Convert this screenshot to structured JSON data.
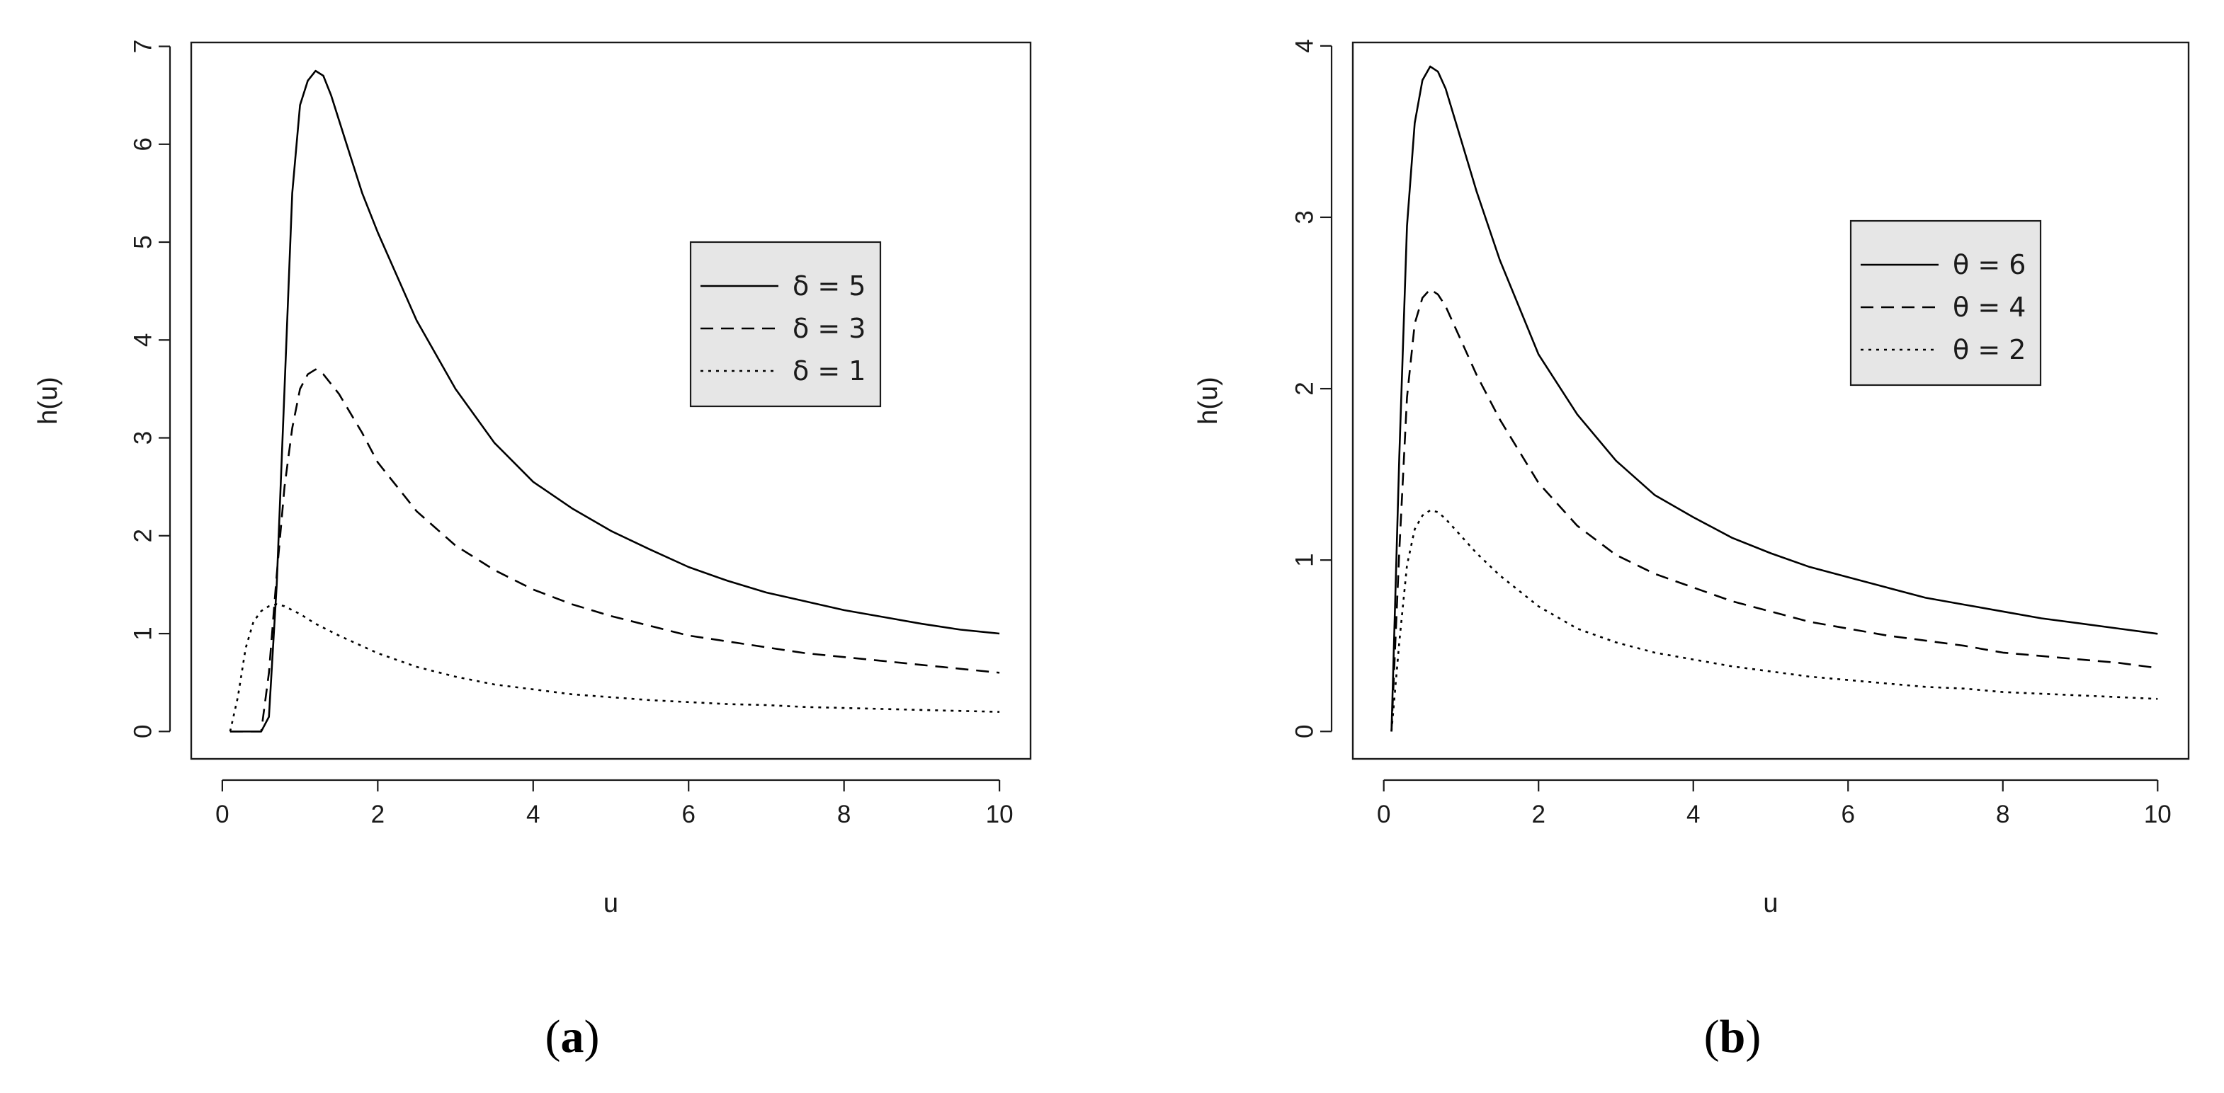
{
  "colors": {
    "line": "#000000",
    "legend_bg": "#e6e6e6",
    "axis": "#1a1a1a"
  },
  "chart_data": [
    {
      "type": "line",
      "panel_label": {
        "open": "(",
        "letter": "a",
        "close": ")"
      },
      "xlabel": "u",
      "ylabel": "h(u)",
      "xlim": [
        -0.4,
        10.4
      ],
      "ylim": [
        -0.28,
        7.04
      ],
      "xticks": [
        "0",
        "2",
        "4",
        "6",
        "8",
        "10"
      ],
      "yticks": [
        "0",
        "1",
        "2",
        "3",
        "4",
        "5",
        "6",
        "7"
      ],
      "legend_position": "right-middle",
      "series": [
        {
          "name": "δ = 5",
          "style": "solid",
          "x": [
            0.1,
            0.3,
            0.5,
            0.6,
            0.7,
            0.8,
            0.9,
            1.0,
            1.1,
            1.2,
            1.3,
            1.4,
            1.6,
            1.8,
            2.0,
            2.5,
            3.0,
            3.5,
            4.0,
            4.5,
            5.0,
            5.5,
            6.0,
            6.5,
            7.0,
            7.5,
            8.0,
            8.5,
            9.0,
            9.5,
            10.0
          ],
          "y": [
            0,
            0,
            0,
            0.15,
            1.5,
            3.5,
            5.5,
            6.4,
            6.65,
            6.75,
            6.7,
            6.5,
            6.0,
            5.5,
            5.1,
            4.2,
            3.5,
            2.95,
            2.55,
            2.28,
            2.05,
            1.86,
            1.68,
            1.54,
            1.42,
            1.33,
            1.24,
            1.17,
            1.1,
            1.04,
            1.0
          ]
        },
        {
          "name": "δ = 3",
          "style": "dashed",
          "x": [
            0.1,
            0.3,
            0.5,
            0.6,
            0.7,
            0.8,
            0.9,
            1.0,
            1.1,
            1.2,
            1.3,
            1.5,
            1.8,
            2.0,
            2.5,
            3.0,
            3.5,
            4.0,
            4.5,
            5.0,
            5.5,
            6.0,
            6.5,
            7.0,
            7.5,
            8.0,
            8.5,
            9.0,
            9.5,
            10.0
          ],
          "y": [
            0,
            0,
            0,
            0.6,
            1.6,
            2.5,
            3.1,
            3.5,
            3.65,
            3.7,
            3.65,
            3.45,
            3.05,
            2.75,
            2.25,
            1.9,
            1.65,
            1.45,
            1.3,
            1.18,
            1.08,
            0.98,
            0.92,
            0.86,
            0.8,
            0.76,
            0.72,
            0.68,
            0.64,
            0.6
          ]
        },
        {
          "name": "δ = 1",
          "style": "dotted",
          "x": [
            0.1,
            0.2,
            0.3,
            0.4,
            0.5,
            0.6,
            0.7,
            0.8,
            0.9,
            1.0,
            1.2,
            1.5,
            2.0,
            2.5,
            3.0,
            3.5,
            4.0,
            4.5,
            5.0,
            5.5,
            6.0,
            6.5,
            7.0,
            7.5,
            8.0,
            8.5,
            9.0,
            9.5,
            10.0
          ],
          "y": [
            0,
            0.35,
            0.85,
            1.12,
            1.23,
            1.28,
            1.3,
            1.28,
            1.24,
            1.2,
            1.1,
            0.98,
            0.8,
            0.66,
            0.56,
            0.48,
            0.43,
            0.38,
            0.35,
            0.32,
            0.3,
            0.28,
            0.27,
            0.25,
            0.24,
            0.23,
            0.22,
            0.21,
            0.2
          ]
        }
      ]
    },
    {
      "type": "line",
      "panel_label": {
        "open": "(",
        "letter": "b",
        "close": ")"
      },
      "xlabel": "u",
      "ylabel": "h(u)",
      "xlim": [
        -0.4,
        10.4
      ],
      "ylim": [
        -0.16,
        4.02
      ],
      "xticks": [
        "0",
        "2",
        "4",
        "6",
        "8",
        "10"
      ],
      "yticks": [
        "0",
        "1",
        "2",
        "3",
        "4"
      ],
      "legend_position": "top-right",
      "series": [
        {
          "name": "θ = 6",
          "style": "solid",
          "x": [
            0.1,
            0.2,
            0.3,
            0.4,
            0.5,
            0.6,
            0.7,
            0.8,
            1.0,
            1.2,
            1.5,
            2.0,
            2.5,
            3.0,
            3.5,
            4.0,
            4.5,
            5.0,
            5.5,
            6.0,
            6.5,
            7.0,
            7.5,
            8.0,
            8.5,
            9.0,
            9.5,
            10.0
          ],
          "y": [
            0,
            1.6,
            2.95,
            3.55,
            3.8,
            3.88,
            3.85,
            3.75,
            3.45,
            3.15,
            2.75,
            2.2,
            1.85,
            1.58,
            1.38,
            1.25,
            1.13,
            1.04,
            0.96,
            0.9,
            0.84,
            0.78,
            0.74,
            0.7,
            0.66,
            0.63,
            0.6,
            0.57
          ]
        },
        {
          "name": "θ = 4",
          "style": "dashed",
          "x": [
            0.1,
            0.2,
            0.3,
            0.4,
            0.5,
            0.6,
            0.7,
            0.8,
            1.0,
            1.2,
            1.5,
            2.0,
            2.5,
            3.0,
            3.5,
            4.0,
            4.5,
            5.0,
            5.5,
            6.0,
            6.5,
            7.0,
            7.5,
            8.0,
            8.5,
            9.0,
            9.5,
            10.0
          ],
          "y": [
            0,
            1.05,
            1.95,
            2.38,
            2.53,
            2.58,
            2.55,
            2.48,
            2.28,
            2.08,
            1.82,
            1.45,
            1.2,
            1.03,
            0.92,
            0.84,
            0.76,
            0.7,
            0.64,
            0.6,
            0.56,
            0.53,
            0.5,
            0.46,
            0.44,
            0.42,
            0.4,
            0.37
          ]
        },
        {
          "name": "θ = 2",
          "style": "dotted",
          "x": [
            0.1,
            0.2,
            0.3,
            0.4,
            0.5,
            0.6,
            0.7,
            0.8,
            1.0,
            1.2,
            1.5,
            2.0,
            2.5,
            3.0,
            3.5,
            4.0,
            4.5,
            5.0,
            5.5,
            6.0,
            6.5,
            7.0,
            7.5,
            8.0,
            8.5,
            9.0,
            9.5,
            10.0
          ],
          "y": [
            0,
            0.52,
            0.97,
            1.18,
            1.26,
            1.29,
            1.28,
            1.24,
            1.14,
            1.04,
            0.91,
            0.73,
            0.6,
            0.52,
            0.46,
            0.42,
            0.38,
            0.35,
            0.32,
            0.3,
            0.28,
            0.26,
            0.25,
            0.23,
            0.22,
            0.21,
            0.2,
            0.19
          ]
        }
      ]
    }
  ]
}
